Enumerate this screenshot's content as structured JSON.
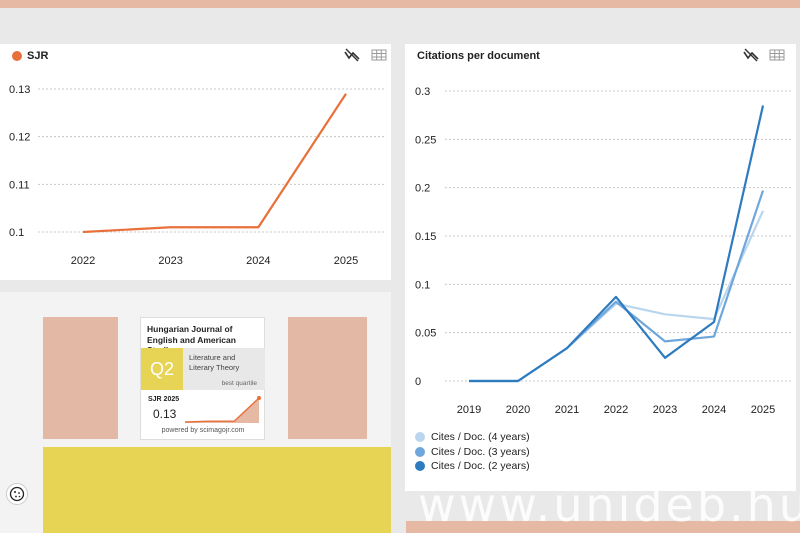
{
  "chart_data": [
    {
      "type": "line",
      "title": "SJR",
      "categories": [
        "2022",
        "2023",
        "2024",
        "2025"
      ],
      "series": [
        {
          "name": "SJR",
          "values": [
            0.1,
            0.101,
            0.101,
            0.129
          ],
          "color": "#e8703a"
        }
      ],
      "yticks": [
        "0.1",
        "0.11",
        "0.12",
        "0.13"
      ],
      "ylim": [
        0.1,
        0.13
      ],
      "grid": true
    },
    {
      "type": "line",
      "title": "Citations per document",
      "categories": [
        "2019",
        "2020",
        "2021",
        "2022",
        "2023",
        "2024",
        "2025"
      ],
      "series": [
        {
          "name": "Cites / Doc. (4 years)",
          "values": [
            0,
            0,
            0.034,
            0.08,
            0.069,
            0.064,
            0.176
          ],
          "color": "#b9d6ee"
        },
        {
          "name": "Cites / Doc. (3 years)",
          "values": [
            0,
            0,
            0.034,
            0.082,
            0.041,
            0.046,
            0.197
          ],
          "color": "#6fa6db"
        },
        {
          "name": "Cites / Doc. (2 years)",
          "values": [
            0,
            0,
            0.034,
            0.087,
            0.024,
            0.061,
            0.285
          ],
          "color": "#2e7bbf"
        }
      ],
      "yticks": [
        "0",
        "0.05",
        "0.1",
        "0.15",
        "0.2",
        "0.25",
        "0.3"
      ],
      "ylim": [
        0,
        0.3
      ],
      "grid": true
    }
  ],
  "widget": {
    "journal": "Hungarian Journal of English and American Studies",
    "quartile": "Q2",
    "category": "Literature and Literary Theory",
    "best_quartile": "best quartile",
    "sjr_label": "SJR 2025",
    "sjr_value": "0.13",
    "sparkline": [
      0.1,
      0.101,
      0.101,
      0.129
    ],
    "powered_by": "powered by scimagojr.com"
  },
  "watermark": "www.unideb.hu",
  "icons": {
    "chart_toggle": "chart-toggle-icon",
    "table": "table-icon",
    "cookie": "cookie-icon"
  }
}
